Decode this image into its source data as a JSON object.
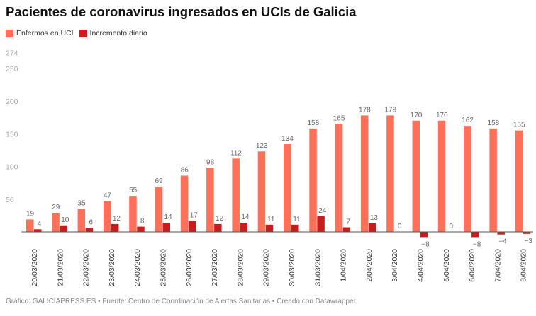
{
  "title": "Pacientes de coronavirus ingresados en UCIs de Galicia",
  "footer": "Gráfico: GALICIAPRESS.ES • Fuente: Centro de Coordinación de Alertas Sanitarias • Creado con Datawrapper",
  "chart_data": {
    "type": "bar",
    "title": "Pacientes de coronavirus ingresados en UCIs de Galicia",
    "xlabel": "",
    "ylabel": "",
    "ylim": [
      -10,
      274
    ],
    "yticks": [
      50,
      100,
      150,
      200,
      250,
      274
    ],
    "grid": false,
    "legend_position": "top-left",
    "categories": [
      "20/03/2020",
      "21/03/2020",
      "22/03/2020",
      "23/03/2020",
      "24/03/2020",
      "25/03/2020",
      "26/03/2020",
      "27/03/2020",
      "28/03/2020",
      "29/03/2020",
      "30/03/2020",
      "31/03/2020",
      "1/04/2020",
      "2/04/2020",
      "3/04/2020",
      "4/04/2020",
      "5/04/2020",
      "6/04/2020",
      "7/04/2020",
      "8/04/2020"
    ],
    "series": [
      {
        "name": "Enfermos en UCI",
        "color": "#ff7059",
        "values": [
          19,
          29,
          35,
          47,
          55,
          69,
          86,
          98,
          112,
          123,
          134,
          158,
          165,
          178,
          178,
          170,
          170,
          162,
          158,
          155
        ]
      },
      {
        "name": "Incremento diario",
        "color": "#c71e1d",
        "values": [
          4,
          10,
          6,
          12,
          8,
          14,
          17,
          12,
          14,
          11,
          11,
          24,
          7,
          13,
          0,
          -8,
          0,
          -8,
          -4,
          -3
        ]
      }
    ]
  }
}
